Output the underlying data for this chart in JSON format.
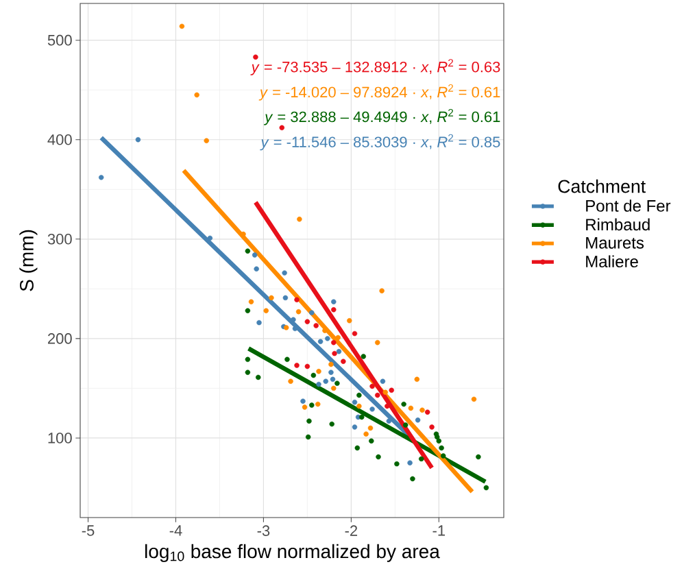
{
  "chart_data": {
    "type": "scatter",
    "xlabel": "log$_{10}$ base flow normalized by area",
    "ylabel": "S (mm)",
    "legend_title": "Catchment",
    "xlim": [
      -5.09,
      -0.26
    ],
    "ylim": [
      20,
      537
    ],
    "xticks": [
      -5,
      -4,
      -3,
      -2,
      -1
    ],
    "yticks": [
      100,
      200,
      300,
      400,
      500
    ],
    "grid": true,
    "legend": "right",
    "annotations": [
      "*y* = -73.535 – 132.8912 · *x*,  *R*$^{2}$ = 0.63",
      "*y* = -14.020 – 97.8924 · *x*,  *R*$^{2}$ = 0.61",
      "*y* = 32.888 – 49.4949 · *x*,  *R*$^{2}$ = 0.61",
      "*y* = -11.546 – 85.3039 · *x*,  *R*$^{2}$ = 0.85"
    ],
    "series": [
      {
        "name": "Pont de Fer",
        "marker": "circle",
        "color": "#4682b4",
        "x": [
          -4.85,
          -4.43,
          -3.61,
          -3.1,
          -3.08,
          -2.76,
          -2.75,
          -3.05,
          -2.77,
          -2.66,
          -2.64,
          -2.45,
          -2.2,
          -2.35,
          -2.27,
          -2.14,
          -2.55,
          -2.37,
          -2.29,
          -2.23,
          -2.21,
          -1.96,
          -1.92,
          -1.96,
          -1.64,
          -1.76,
          -1.24,
          -1.33,
          -1.57
        ],
        "values": [
          362,
          400,
          301,
          284,
          270,
          266,
          241,
          216,
          212,
          219,
          210,
          226,
          237,
          197,
          200,
          187,
          137,
          154,
          157,
          166,
          159,
          136,
          121,
          111,
          157,
          129,
          118,
          75,
          117
        ]
      },
      {
        "name": "Rimbaud",
        "marker": "circle",
        "color": "#006400",
        "x": [
          -3.18,
          -3.18,
          -3.18,
          -3.18,
          -3.06,
          -2.73,
          -2.43,
          -2.16,
          -2.45,
          -2.48,
          -2.49,
          -2.22,
          -1.91,
          -1.88,
          -1.93,
          -1.86,
          -1.77,
          -1.69,
          -1.48,
          -1.3,
          -1.4,
          -1.2,
          -1.03,
          -1.02,
          -1.0,
          -0.97,
          -0.95,
          -0.55,
          -0.46,
          -1.38
        ],
        "values": [
          288,
          228,
          179,
          166,
          161,
          179,
          163,
          155,
          133,
          117,
          101,
          114,
          143,
          121,
          90,
          182,
          97,
          81,
          74,
          59,
          134,
          79,
          104,
          101,
          97,
          90,
          82,
          81,
          50,
          113
        ]
      },
      {
        "name": "Maurets",
        "marker": "circle",
        "color": "#ff8c00",
        "x": [
          -3.93,
          -3.76,
          -3.65,
          -3.23,
          -2.59,
          -3.14,
          -2.97,
          -2.91,
          -2.6,
          -2.74,
          -2.3,
          -2.02,
          -2.15,
          -2.69,
          -2.37,
          -2.2,
          -2.53,
          -2.38,
          -2.23,
          -1.91,
          -1.83,
          -1.78,
          -1.65,
          -1.7,
          -1.25,
          -1.32,
          -1.19,
          -0.6,
          -1.61
        ],
        "values": [
          514,
          445,
          399,
          305,
          320,
          237,
          228,
          241,
          227,
          211,
          208,
          218,
          201,
          157,
          167,
          150,
          131,
          134,
          174,
          132,
          104,
          110,
          248,
          196,
          159,
          130,
          128,
          139,
          146
        ]
      },
      {
        "name": "Maliere",
        "marker": "circle",
        "color": "#e8101a",
        "x": [
          -3.09,
          -2.79,
          -2.62,
          -2.5,
          -2.4,
          -2.2,
          -2.2,
          -2.19,
          -2.09,
          -1.96,
          -2.62,
          -2.5,
          -1.76,
          -1.7,
          -1.54,
          -1.59,
          -1.13,
          -1.08
        ],
        "values": [
          483,
          412,
          239,
          217,
          213,
          229,
          196,
          185,
          177,
          205,
          173,
          172,
          152,
          143,
          148,
          132,
          126,
          111
        ]
      },
      {
        "type": "line",
        "color": "#4682b4",
        "x": [
          -4.85,
          -1.3
        ],
        "values": [
          402,
          99
        ]
      },
      {
        "type": "line",
        "color": "#006400",
        "x": [
          -3.17,
          -0.47
        ],
        "values": [
          190,
          56
        ]
      },
      {
        "type": "line",
        "color": "#ff8c00",
        "x": [
          -3.91,
          -0.62
        ],
        "values": [
          369,
          46
        ]
      },
      {
        "type": "line",
        "color": "#e8101a",
        "x": [
          -3.09,
          -1.08
        ],
        "values": [
          337,
          70
        ]
      }
    ]
  }
}
